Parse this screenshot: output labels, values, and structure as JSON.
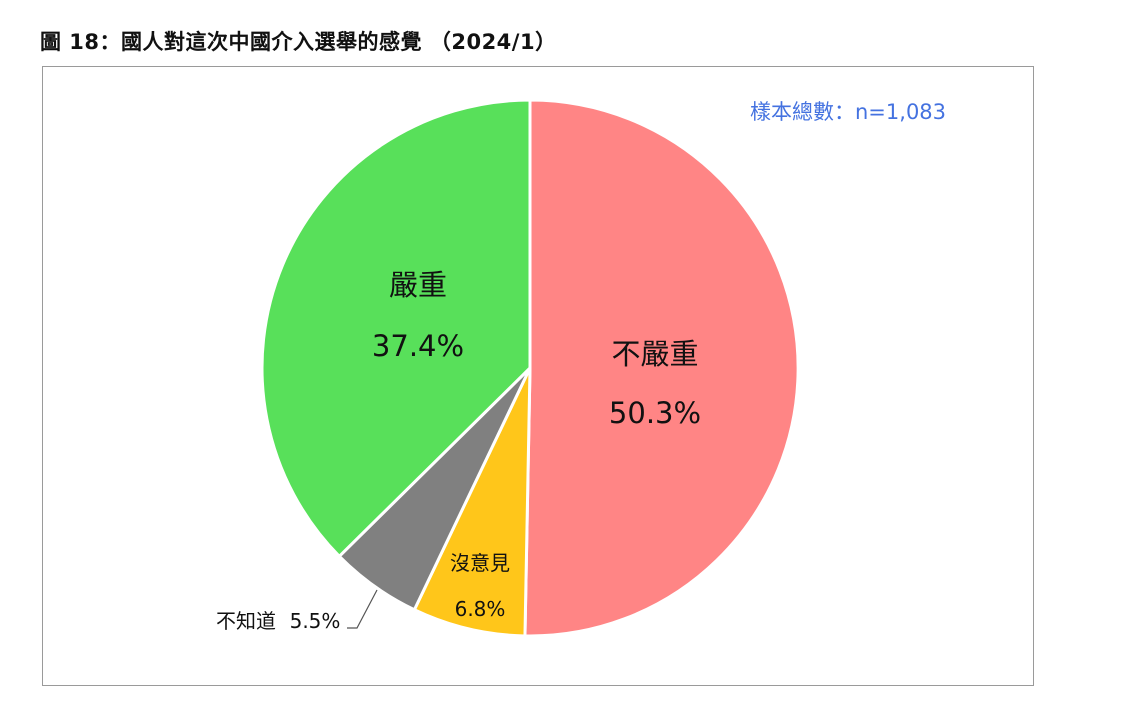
{
  "title": "圖 18：國人對這次中國介入選舉的感覺 （2024/1）",
  "sample_note": "樣本總數：n=1,083",
  "chart_data": {
    "type": "pie",
    "slices": [
      {
        "label": "不嚴重",
        "value": 50.3,
        "display": "50.3%",
        "color": "#ff8585"
      },
      {
        "label": "沒意見",
        "value": 6.8,
        "display": "6.8%",
        "color": "#ffc61a"
      },
      {
        "label": "不知道",
        "value": 5.5,
        "display": "5.5%",
        "color": "#808080"
      },
      {
        "label": "嚴重",
        "value": 37.4,
        "display": "37.4%",
        "color": "#58e05a"
      }
    ]
  }
}
